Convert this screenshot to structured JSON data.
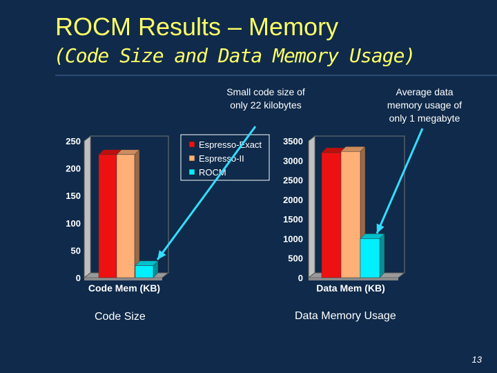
{
  "slide": {
    "title": "ROCM Results – Memory",
    "subtitle": "(Code Size and Data Memory Usage)",
    "page_number": "13",
    "callout_code": [
      "Small code size of",
      "only 22 kilobytes"
    ],
    "callout_data": [
      "Average data",
      "memory usage of",
      "only 1 megabyte"
    ],
    "caption_code": "Code Size",
    "caption_data": "Data Memory Usage"
  },
  "colors": {
    "background": "#0f2a4a",
    "title": "#ffff66",
    "arrow": "#33ddff"
  },
  "chart_data": [
    {
      "type": "bar",
      "categories": [
        "Code Mem (KB)"
      ],
      "series": [
        {
          "name": "Espresso-Exact",
          "values": [
            225
          ],
          "color": "#ee1111"
        },
        {
          "name": "Espresso-II",
          "values": [
            225
          ],
          "color": "#ffb077"
        },
        {
          "name": "ROCM",
          "values": [
            22
          ],
          "color": "#00f0ff"
        }
      ],
      "ylim": [
        0,
        250
      ],
      "yticks": [
        0,
        50,
        100,
        150,
        200,
        250
      ],
      "legend": "top-right",
      "grid": false
    },
    {
      "type": "bar",
      "categories": [
        "Data Mem (KB)"
      ],
      "series": [
        {
          "name": "Espresso-Exact",
          "values": [
            3200
          ],
          "color": "#ee1111"
        },
        {
          "name": "Espresso-II",
          "values": [
            3230
          ],
          "color": "#ffb077"
        },
        {
          "name": "ROCM",
          "values": [
            1000
          ],
          "color": "#00f0ff"
        }
      ],
      "ylim": [
        0,
        3500
      ],
      "yticks": [
        0,
        500,
        1000,
        1500,
        2000,
        2500,
        3000,
        3500
      ],
      "legend": "none",
      "grid": false
    }
  ]
}
